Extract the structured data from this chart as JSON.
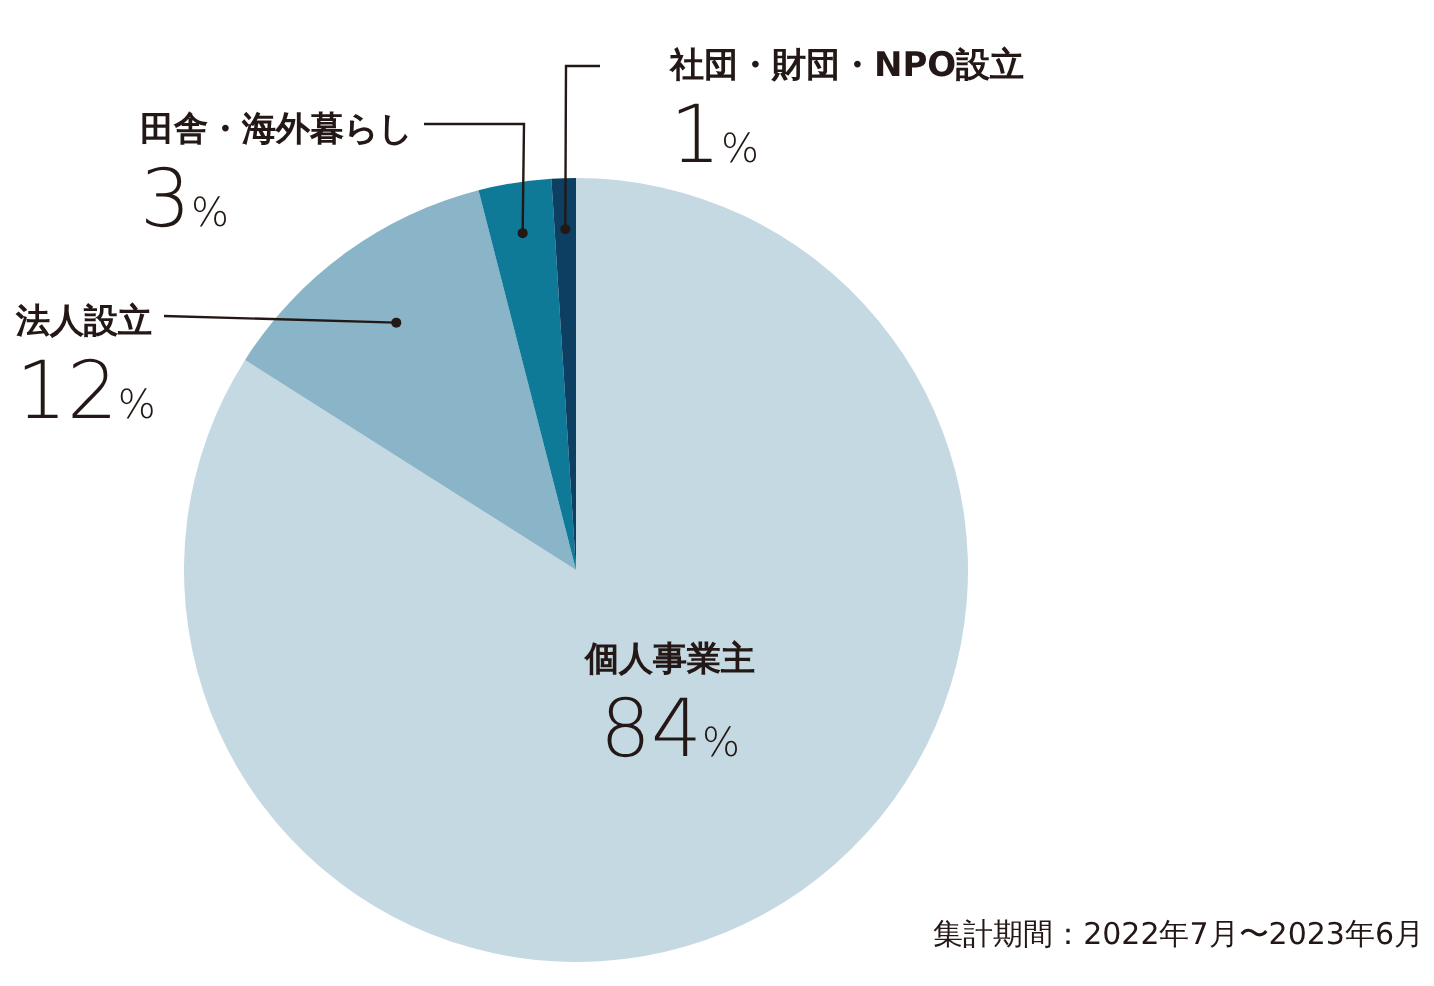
{
  "chart_data": {
    "type": "pie",
    "categories": [
      "個人事業主",
      "法人設立",
      "田舎・海外暮らし",
      "社団・財団・NPO設立"
    ],
    "values": [
      84,
      12,
      3,
      1
    ],
    "colors": [
      "#c5d9e3",
      "#8ab4c8",
      "#0f7a98",
      "#0d3f63"
    ],
    "value_labels": [
      "84%",
      "12%",
      "3%",
      "1%"
    ],
    "annotations": [
      "集計期間：2022年7月〜2023年6月"
    ]
  }
}
